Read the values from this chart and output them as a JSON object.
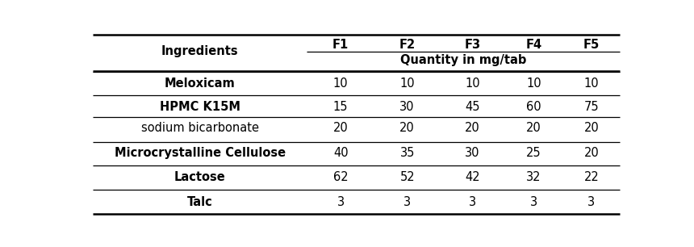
{
  "col_headers_top": [
    "F1",
    "F2",
    "F3",
    "F4",
    "F5"
  ],
  "col_headers_sub": "Quantity in mg/tab",
  "ingredient_header": "Ingredients",
  "rows": [
    [
      "Meloxicam",
      "10",
      "10",
      "10",
      "10",
      "10"
    ],
    [
      "HPMC K15M",
      "15",
      "30",
      "45",
      "60",
      "75"
    ],
    [
      "sodium bicarbonate",
      "20",
      "20",
      "20",
      "20",
      "20"
    ],
    [
      "Microcrystalline Cellulose",
      "40",
      "35",
      "30",
      "25",
      "20"
    ],
    [
      "Lactose",
      "62",
      "52",
      "42",
      "32",
      "22"
    ],
    [
      "Talc",
      "3",
      "3",
      "3",
      "3",
      "3"
    ]
  ],
  "bold_ingredient_rows": [
    0,
    1,
    3,
    4,
    5
  ],
  "background_color": "#ffffff",
  "line_color": "#000000",
  "font_size": 10.5,
  "header_font_size": 10.5
}
